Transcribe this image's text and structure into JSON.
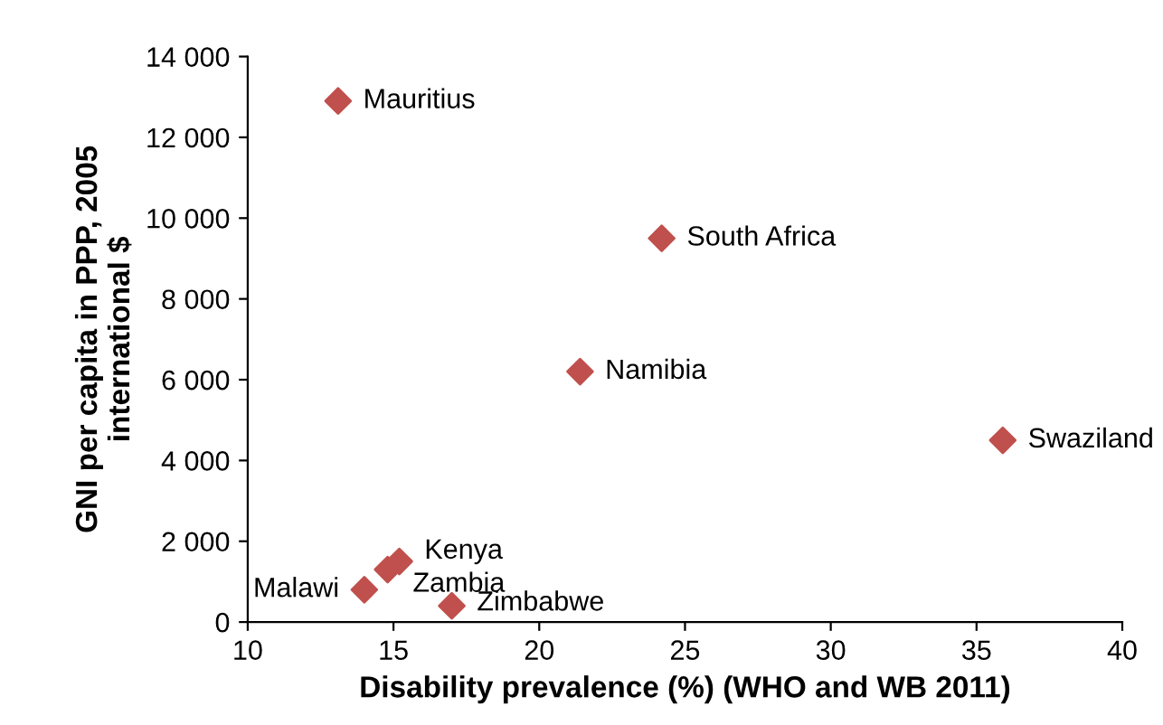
{
  "chart_data": {
    "type": "scatter",
    "xlabel": "Disability prevalence (%) (WHO and WB 2011)",
    "ylabel": "GNI per capita in PPP, 2005\ninternational $",
    "series": [
      {
        "color": "#c0504d",
        "x": [
          13.1,
          24.2,
          21.4,
          35.9,
          15.2,
          14.8,
          14.0,
          17.0
        ],
        "values": [
          12900,
          9500,
          6200,
          4500,
          1500,
          1300,
          800,
          400
        ]
      }
    ],
    "marker": "diamond",
    "grid": false,
    "legend": false,
    "xlim": [
      10,
      40
    ],
    "xticks": [
      10,
      15,
      20,
      25,
      30,
      35,
      40
    ],
    "ylim": [
      0,
      14000
    ],
    "yticks": [
      0,
      {
        "value": 2000,
        "label": "2 000"
      },
      {
        "value": 4000,
        "label": "4 000"
      },
      {
        "value": 6000,
        "label": "6 000"
      },
      {
        "value": 8000,
        "label": "8 000"
      },
      {
        "value": 10000,
        "label": "10 000"
      },
      {
        "value": 12000,
        "label": "12 000"
      },
      {
        "value": 14000,
        "label": "14 000"
      }
    ],
    "annotations": [
      {
        "text": "Mauritius",
        "x": 13.1,
        "y": 12900
      },
      {
        "text": "South Africa",
        "x": 24.2,
        "y": 9500
      },
      {
        "text": "Namibia",
        "x": 21.4,
        "y": 6200
      },
      {
        "text": "Swaziland",
        "x": 35.9,
        "y": 4500
      },
      {
        "text": "Kenya",
        "x": 15.2,
        "y": 1500
      },
      {
        "text": "Zambia",
        "x": 14.8,
        "y": 1300
      },
      {
        "text": "Malawi",
        "x": 14.0,
        "y": 800
      },
      {
        "text": "Zimbabwe",
        "x": 17.0,
        "y": 400
      }
    ]
  }
}
